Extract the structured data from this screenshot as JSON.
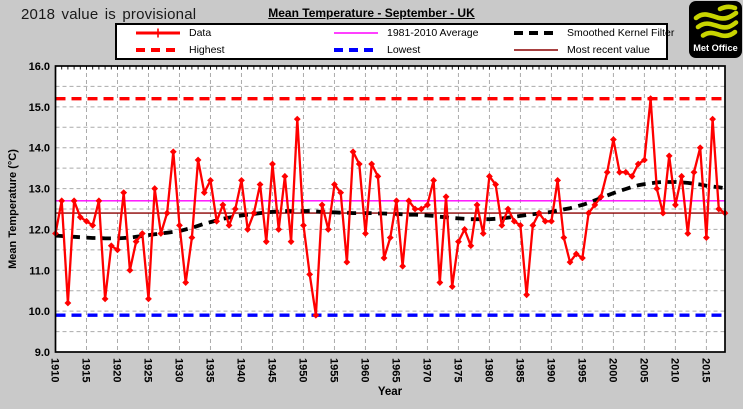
{
  "header": {
    "provisional_note": "2018 value is provisional",
    "title": "Mean Temperature - September - UK",
    "logo_text": "Met Office"
  },
  "legend": {
    "items": [
      {
        "label": "Data"
      },
      {
        "label": "1981-2010 Average"
      },
      {
        "label": "Smoothed Kernel Filter"
      },
      {
        "label": "Highest"
      },
      {
        "label": "Lowest"
      },
      {
        "label": "Most recent value"
      }
    ]
  },
  "axes": {
    "y_label": "Mean Temperature (°C)",
    "x_label": "Year"
  },
  "chart_data": {
    "type": "line",
    "title": "Mean Temperature - September - UK",
    "xlabel": "Year",
    "ylabel": "Mean Temperature (°C)",
    "x_range": [
      1910,
      2018
    ],
    "ylim": [
      9.0,
      16.0
    ],
    "grid": "dashed, 0.5 deg horizontal steps, 5 year vertical steps",
    "legend_position": "top",
    "x_ticks": [
      1910,
      1915,
      1920,
      1925,
      1930,
      1935,
      1940,
      1945,
      1950,
      1955,
      1960,
      1965,
      1970,
      1975,
      1980,
      1985,
      1990,
      1995,
      2000,
      2005,
      2010,
      2015
    ],
    "y_ticks": [
      9.0,
      10.0,
      11.0,
      12.0,
      13.0,
      14.0,
      15.0,
      16.0
    ],
    "reference_lines": {
      "highest": 15.2,
      "lowest": 9.9,
      "average_1981_2010": 12.7,
      "most_recent": 12.4
    },
    "series": [
      {
        "name": "Data",
        "start_year": 1910,
        "values": [
          11.9,
          12.7,
          10.2,
          12.7,
          12.3,
          12.2,
          12.1,
          12.7,
          10.3,
          11.6,
          11.5,
          12.9,
          11.0,
          11.7,
          11.9,
          10.3,
          13.0,
          11.9,
          12.4,
          13.9,
          12.1,
          10.7,
          11.8,
          13.7,
          12.9,
          13.2,
          12.2,
          12.6,
          12.1,
          12.5,
          13.2,
          12.0,
          12.4,
          13.1,
          11.7,
          13.6,
          12.0,
          13.3,
          11.7,
          14.7,
          12.1,
          10.9,
          9.9,
          12.6,
          12.0,
          13.1,
          12.9,
          11.2,
          13.9,
          13.6,
          11.9,
          13.6,
          13.3,
          11.3,
          11.8,
          12.7,
          11.1,
          12.7,
          12.5,
          12.5,
          12.6,
          13.2,
          10.7,
          12.8,
          10.6,
          11.7,
          12.0,
          11.6,
          12.6,
          11.9,
          13.3,
          13.1,
          12.1,
          12.5,
          12.2,
          12.1,
          10.4,
          12.1,
          12.4,
          12.2,
          12.2,
          13.2,
          11.8,
          11.2,
          11.4,
          11.3,
          12.4,
          12.6,
          12.8,
          13.4,
          14.2,
          13.4,
          13.4,
          13.3,
          13.6,
          13.7,
          15.2,
          13.0,
          12.4,
          13.8,
          12.6,
          13.3,
          11.9,
          13.4,
          14.0,
          11.8,
          14.7,
          12.5,
          12.4
        ]
      },
      {
        "name": "Smoothed Kernel Filter",
        "start_year": 1910,
        "values": [
          11.85,
          11.84,
          11.83,
          11.82,
          11.81,
          11.8,
          11.79,
          11.79,
          11.78,
          11.78,
          11.78,
          11.79,
          11.8,
          11.82,
          11.84,
          11.86,
          11.88,
          11.9,
          11.92,
          11.94,
          11.96,
          12.0,
          12.04,
          12.09,
          12.14,
          12.18,
          12.22,
          12.26,
          12.29,
          12.32,
          12.34,
          12.36,
          12.38,
          12.4,
          12.42,
          12.43,
          12.44,
          12.45,
          12.45,
          12.45,
          12.45,
          12.45,
          12.44,
          12.43,
          12.42,
          12.42,
          12.41,
          12.41,
          12.4,
          12.4,
          12.4,
          12.4,
          12.39,
          12.39,
          12.38,
          12.38,
          12.37,
          12.36,
          12.36,
          12.35,
          12.34,
          12.33,
          12.31,
          12.3,
          12.28,
          12.27,
          12.26,
          12.25,
          12.25,
          12.25,
          12.25,
          12.26,
          12.27,
          12.29,
          12.31,
          12.33,
          12.35,
          12.37,
          12.39,
          12.41,
          12.43,
          12.46,
          12.49,
          12.52,
          12.56,
          12.6,
          12.65,
          12.71,
          12.77,
          12.83,
          12.89,
          12.94,
          12.99,
          13.04,
          13.08,
          13.11,
          13.13,
          13.15,
          13.16,
          13.16,
          13.16,
          13.15,
          13.14,
          13.12,
          13.1,
          13.07,
          13.05,
          13.03,
          13.01
        ]
      }
    ],
    "colors": {
      "data": "#ff0000",
      "highest": "#ff0000",
      "lowest": "#0000ff",
      "average": "#ff00ff",
      "most_recent": "#8b0000",
      "smoothed": "#000000",
      "grid": "#ababab",
      "plot_background": "#ffffff",
      "background": "#c9c9c9",
      "logo_green": "#c8d400"
    }
  }
}
